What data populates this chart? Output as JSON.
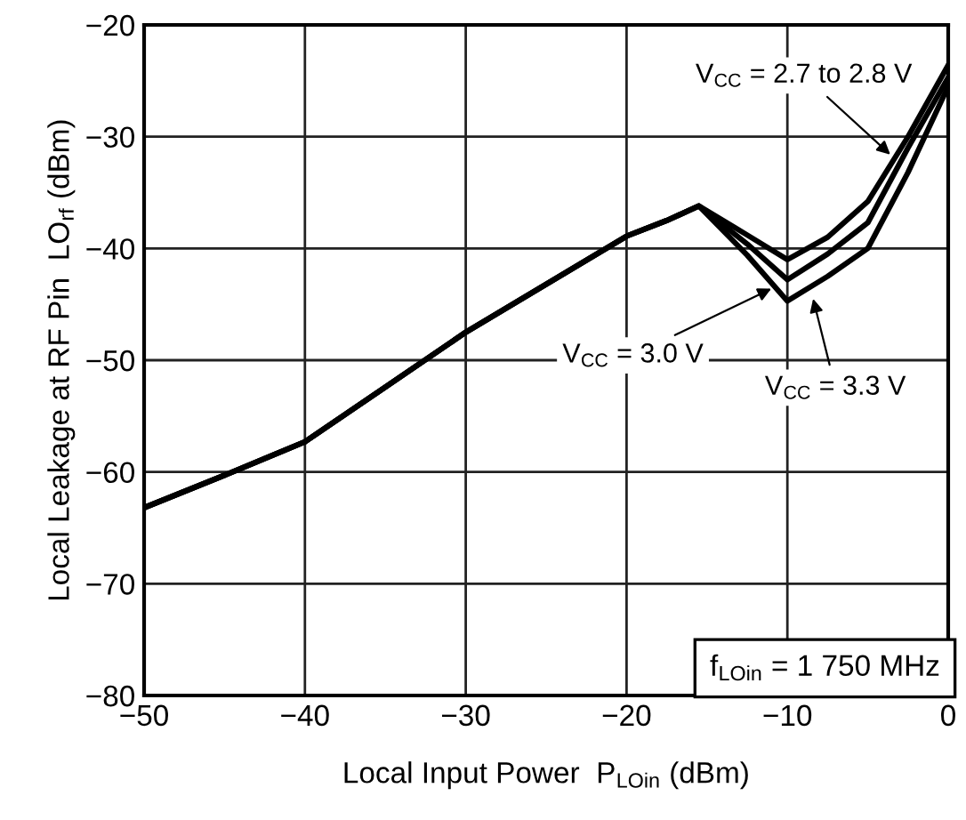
{
  "chart_data": {
    "type": "line",
    "xlabel": "Local Input Power  P$_{LOin}$ (dBm)",
    "ylabel": "Local Leakage at RF Pin  LO$_{rf}$ (dBm)",
    "x": [
      -50,
      -45,
      -40,
      -35,
      -30,
      -25,
      -20,
      -17.5,
      -15.5,
      -12.5,
      -10,
      -7.5,
      -5,
      -2.5,
      0
    ],
    "series": [
      {
        "color": "#000000",
        "values": [
          -63.2,
          -60.3,
          -57.3,
          -52.4,
          -47.5,
          -43.2,
          -38.9,
          -37.5,
          -36.2,
          -38.8,
          -41.0,
          -39.0,
          -35.8,
          -30.0,
          -23.6
        ]
      },
      {
        "color": "#000000",
        "values": [
          -63.2,
          -60.3,
          -57.3,
          -52.4,
          -47.5,
          -43.2,
          -38.9,
          -37.5,
          -36.2,
          -39.6,
          -42.8,
          -40.5,
          -37.7,
          -31.0,
          -24.7
        ]
      },
      {
        "color": "#000000",
        "values": [
          -63.2,
          -60.3,
          -57.3,
          -52.4,
          -47.5,
          -43.2,
          -38.9,
          -37.5,
          -36.2,
          -40.6,
          -44.7,
          -42.5,
          -40.0,
          -33.2,
          -25.5
        ]
      }
    ],
    "annotations": [
      {
        "text": "V$_{CC}$ = 2.7 to 2.8 V",
        "x": -3.6,
        "y": -31.6
      },
      {
        "text": "V$_{CC}$ = 3.0 V",
        "x": -11,
        "y": -43.6
      },
      {
        "text": "V$_{CC}$ = 3.3 V",
        "x": -8.4,
        "y": -44.5
      },
      "f$_{LOin}$ = 1 750 MHz"
    ],
    "xlim": [
      -50,
      0
    ],
    "ylim": [
      -80,
      -20
    ],
    "xticks": [
      -50,
      -40,
      -30,
      -20,
      -10,
      0
    ],
    "yticks": [
      -80,
      -70,
      -60,
      -50,
      -40,
      -30,
      -20
    ],
    "grid": true,
    "line_style": "solid",
    "marker": "none"
  }
}
